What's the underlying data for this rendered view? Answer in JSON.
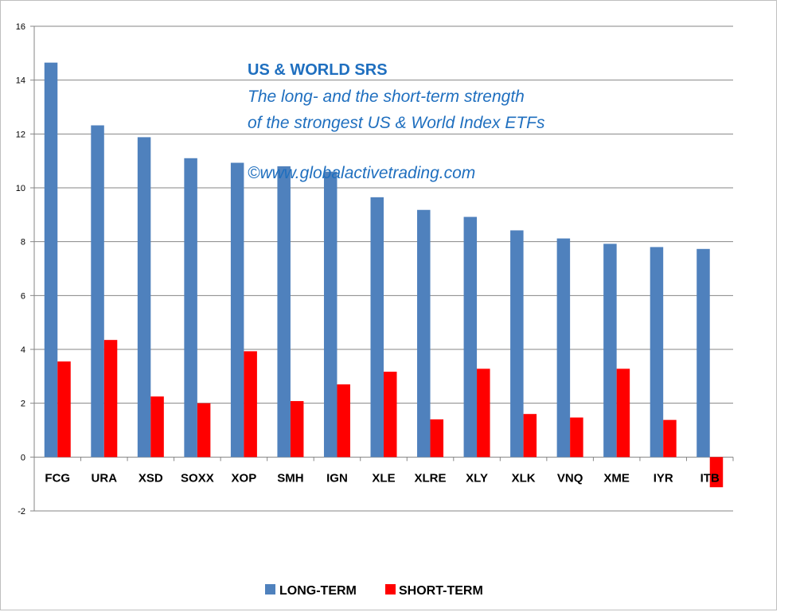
{
  "chart_data": {
    "type": "bar",
    "title": "US & WORLD SRS",
    "subtitle_lines": [
      "The long- and the short-term strength",
      "of the  strongest  US & World Index ETFs"
    ],
    "watermark": "©www.globalactivetrading.com",
    "categories": [
      "FCG",
      "URA",
      "XSD",
      "SOXX",
      "XOP",
      "SMH",
      "IGN",
      "XLE",
      "XLRE",
      "XLY",
      "XLK",
      "VNQ",
      "XME",
      "IYR",
      "ITB"
    ],
    "series": [
      {
        "name": "LONG-TERM",
        "color": "#4f81bd",
        "values": [
          14.65,
          12.32,
          11.88,
          11.1,
          10.93,
          10.8,
          10.6,
          9.65,
          9.18,
          8.92,
          8.42,
          8.12,
          7.92,
          7.8,
          7.73
        ]
      },
      {
        "name": "SHORT-TERM",
        "color": "#ff0000",
        "values": [
          3.55,
          4.35,
          2.25,
          2.0,
          3.93,
          2.08,
          2.7,
          3.17,
          1.4,
          3.28,
          1.6,
          1.47,
          3.28,
          1.38,
          -1.12
        ]
      }
    ],
    "ylim": [
      -2,
      16
    ],
    "yticks": [
      -2,
      0,
      2,
      4,
      6,
      8,
      10,
      12,
      14,
      16
    ],
    "grid": true,
    "legend_position": "bottom-center"
  }
}
